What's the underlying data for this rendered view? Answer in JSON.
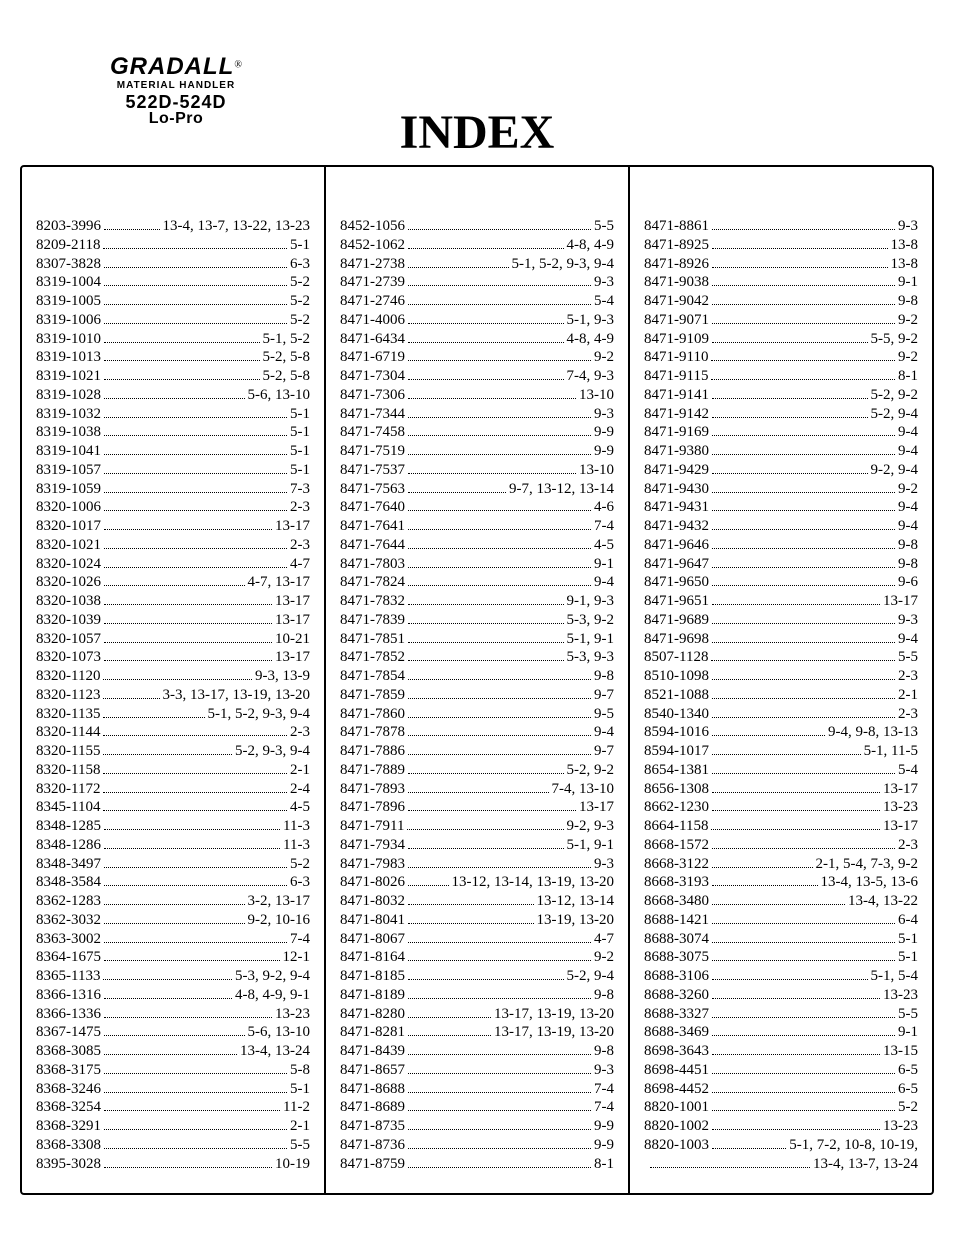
{
  "brand": {
    "name": "GRADALL",
    "registered": "®",
    "subhead": "MATERIAL HANDLER",
    "model": "522D-524D",
    "lopro": "Lo-Pro"
  },
  "title": "INDEX",
  "columns": [
    [
      {
        "part": "8203-3996",
        "pages": "13-4, 13-7, 13-22, 13-23"
      },
      {
        "part": "8209-2118",
        "pages": "5-1"
      },
      {
        "part": "8307-3828",
        "pages": "6-3"
      },
      {
        "part": "8319-1004",
        "pages": "5-2"
      },
      {
        "part": "8319-1005",
        "pages": "5-2"
      },
      {
        "part": "8319-1006",
        "pages": "5-2"
      },
      {
        "part": "8319-1010",
        "pages": "5-1, 5-2"
      },
      {
        "part": "8319-1013",
        "pages": "5-2, 5-8"
      },
      {
        "part": "8319-1021",
        "pages": "5-2, 5-8"
      },
      {
        "part": "8319-1028",
        "pages": "5-6, 13-10"
      },
      {
        "part": "8319-1032",
        "pages": "5-1"
      },
      {
        "part": "8319-1038",
        "pages": "5-1"
      },
      {
        "part": "8319-1041",
        "pages": "5-1"
      },
      {
        "part": "8319-1057",
        "pages": "5-1"
      },
      {
        "part": "8319-1059",
        "pages": "7-3"
      },
      {
        "part": "8320-1006",
        "pages": "2-3"
      },
      {
        "part": "8320-1017",
        "pages": "13-17"
      },
      {
        "part": "8320-1021",
        "pages": "2-3"
      },
      {
        "part": "8320-1024",
        "pages": "4-7"
      },
      {
        "part": "8320-1026",
        "pages": "4-7, 13-17"
      },
      {
        "part": "8320-1038",
        "pages": "13-17"
      },
      {
        "part": "8320-1039",
        "pages": "13-17"
      },
      {
        "part": "8320-1057",
        "pages": "10-21"
      },
      {
        "part": "8320-1073",
        "pages": "13-17"
      },
      {
        "part": "8320-1120",
        "pages": "9-3, 13-9"
      },
      {
        "part": "8320-1123",
        "pages": "3-3, 13-17, 13-19, 13-20"
      },
      {
        "part": "8320-1135",
        "pages": "5-1, 5-2, 9-3, 9-4"
      },
      {
        "part": "8320-1144",
        "pages": "2-3"
      },
      {
        "part": "8320-1155",
        "pages": "5-2, 9-3, 9-4"
      },
      {
        "part": "8320-1158",
        "pages": "2-1"
      },
      {
        "part": "8320-1172",
        "pages": "2-4"
      },
      {
        "part": "8345-1104",
        "pages": "4-5"
      },
      {
        "part": "8348-1285",
        "pages": "11-3"
      },
      {
        "part": "8348-1286",
        "pages": "11-3"
      },
      {
        "part": "8348-3497",
        "pages": "5-2"
      },
      {
        "part": "8348-3584",
        "pages": "6-3"
      },
      {
        "part": "8362-1283",
        "pages": "3-2, 13-17"
      },
      {
        "part": "8362-3032",
        "pages": "9-2, 10-16"
      },
      {
        "part": "8363-3002",
        "pages": "7-4"
      },
      {
        "part": "8364-1675",
        "pages": "12-1"
      },
      {
        "part": "8365-1133",
        "pages": "5-3, 9-2, 9-4"
      },
      {
        "part": "8366-1316",
        "pages": "4-8, 4-9, 9-1"
      },
      {
        "part": "8366-1336",
        "pages": "13-23"
      },
      {
        "part": "8367-1475",
        "pages": "5-6, 13-10"
      },
      {
        "part": "8368-3085",
        "pages": "13-4, 13-24"
      },
      {
        "part": "8368-3175",
        "pages": "5-8"
      },
      {
        "part": "8368-3246",
        "pages": "5-1"
      },
      {
        "part": "8368-3254",
        "pages": "11-2"
      },
      {
        "part": "8368-3291",
        "pages": "2-1"
      },
      {
        "part": "8368-3308",
        "pages": "5-5"
      },
      {
        "part": "8395-3028",
        "pages": "10-19"
      }
    ],
    [
      {
        "part": "8452-1056",
        "pages": "5-5"
      },
      {
        "part": "8452-1062",
        "pages": "4-8, 4-9"
      },
      {
        "part": "8471-2738",
        "pages": "5-1, 5-2, 9-3, 9-4"
      },
      {
        "part": "8471-2739",
        "pages": "9-3"
      },
      {
        "part": "8471-2746",
        "pages": "5-4"
      },
      {
        "part": "8471-4006",
        "pages": "5-1, 9-3"
      },
      {
        "part": "8471-6434",
        "pages": "4-8, 4-9"
      },
      {
        "part": "8471-6719",
        "pages": "9-2"
      },
      {
        "part": "8471-7304",
        "pages": "7-4, 9-3"
      },
      {
        "part": "8471-7306",
        "pages": "13-10"
      },
      {
        "part": "8471-7344",
        "pages": "9-3"
      },
      {
        "part": "8471-7458",
        "pages": "9-9"
      },
      {
        "part": "8471-7519",
        "pages": "9-9"
      },
      {
        "part": "8471-7537",
        "pages": "13-10"
      },
      {
        "part": "8471-7563",
        "pages": "9-7, 13-12, 13-14"
      },
      {
        "part": "8471-7640",
        "pages": "4-6"
      },
      {
        "part": "8471-7641",
        "pages": "7-4"
      },
      {
        "part": "8471-7644",
        "pages": "4-5"
      },
      {
        "part": "8471-7803",
        "pages": "9-1"
      },
      {
        "part": "8471-7824",
        "pages": "9-4"
      },
      {
        "part": "8471-7832",
        "pages": "9-1, 9-3"
      },
      {
        "part": "8471-7839",
        "pages": "5-3, 9-2"
      },
      {
        "part": "8471-7851",
        "pages": "5-1, 9-1"
      },
      {
        "part": "8471-7852",
        "pages": "5-3, 9-3"
      },
      {
        "part": "8471-7854",
        "pages": "9-8"
      },
      {
        "part": "8471-7859",
        "pages": "9-7"
      },
      {
        "part": "8471-7860",
        "pages": "9-5"
      },
      {
        "part": "8471-7878",
        "pages": "9-4"
      },
      {
        "part": "8471-7886",
        "pages": "9-7"
      },
      {
        "part": "8471-7889",
        "pages": "5-2, 9-2"
      },
      {
        "part": "8471-7893",
        "pages": "7-4, 13-10"
      },
      {
        "part": "8471-7896",
        "pages": "13-17"
      },
      {
        "part": "8471-7911",
        "pages": "9-2, 9-3"
      },
      {
        "part": "8471-7934",
        "pages": "5-1, 9-1"
      },
      {
        "part": "8471-7983",
        "pages": "9-3"
      },
      {
        "part": "8471-8026",
        "pages": "13-12, 13-14, 13-19, 13-20"
      },
      {
        "part": "8471-8032",
        "pages": "13-12, 13-14"
      },
      {
        "part": "8471-8041",
        "pages": "13-19, 13-20"
      },
      {
        "part": "8471-8067",
        "pages": "4-7"
      },
      {
        "part": "8471-8164",
        "pages": "9-2"
      },
      {
        "part": "8471-8185",
        "pages": "5-2, 9-4"
      },
      {
        "part": "8471-8189",
        "pages": "9-8"
      },
      {
        "part": "8471-8280",
        "pages": "13-17, 13-19, 13-20"
      },
      {
        "part": "8471-8281",
        "pages": "13-17, 13-19, 13-20"
      },
      {
        "part": "8471-8439",
        "pages": "9-8"
      },
      {
        "part": "8471-8657",
        "pages": "9-3"
      },
      {
        "part": "8471-8688",
        "pages": "7-4"
      },
      {
        "part": "8471-8689",
        "pages": "7-4"
      },
      {
        "part": "8471-8735",
        "pages": "9-9"
      },
      {
        "part": "8471-8736",
        "pages": "9-9"
      },
      {
        "part": "8471-8759",
        "pages": "8-1"
      }
    ],
    [
      {
        "part": "8471-8861",
        "pages": "9-3"
      },
      {
        "part": "8471-8925",
        "pages": "13-8"
      },
      {
        "part": "8471-8926",
        "pages": "13-8"
      },
      {
        "part": "8471-9038",
        "pages": "9-1"
      },
      {
        "part": "8471-9042",
        "pages": "9-8"
      },
      {
        "part": "8471-9071",
        "pages": "9-2"
      },
      {
        "part": "8471-9109",
        "pages": "5-5, 9-2"
      },
      {
        "part": "8471-9110",
        "pages": "9-2"
      },
      {
        "part": "8471-9115",
        "pages": "8-1"
      },
      {
        "part": "8471-9141",
        "pages": "5-2, 9-2"
      },
      {
        "part": "8471-9142",
        "pages": "5-2, 9-4"
      },
      {
        "part": "8471-9169",
        "pages": "9-4"
      },
      {
        "part": "8471-9380",
        "pages": "9-4"
      },
      {
        "part": "8471-9429",
        "pages": "9-2, 9-4"
      },
      {
        "part": "8471-9430",
        "pages": "9-2"
      },
      {
        "part": "8471-9431",
        "pages": "9-4"
      },
      {
        "part": "8471-9432",
        "pages": "9-4"
      },
      {
        "part": "8471-9646",
        "pages": "9-8"
      },
      {
        "part": "8471-9647",
        "pages": "9-8"
      },
      {
        "part": "8471-9650",
        "pages": "9-6"
      },
      {
        "part": "8471-9651",
        "pages": "13-17"
      },
      {
        "part": "8471-9689",
        "pages": "9-3"
      },
      {
        "part": "8471-9698",
        "pages": "9-4"
      },
      {
        "part": "8507-1128",
        "pages": "5-5"
      },
      {
        "part": "8510-1098",
        "pages": "2-3"
      },
      {
        "part": "8521-1088",
        "pages": "2-1"
      },
      {
        "part": "8540-1340",
        "pages": "2-3"
      },
      {
        "part": "8594-1016",
        "pages": "9-4, 9-8, 13-13"
      },
      {
        "part": "8594-1017",
        "pages": "5-1, 11-5"
      },
      {
        "part": "8654-1381",
        "pages": "5-4"
      },
      {
        "part": "8656-1308",
        "pages": "13-17"
      },
      {
        "part": "8662-1230",
        "pages": "13-23"
      },
      {
        "part": "8664-1158",
        "pages": "13-17"
      },
      {
        "part": "8668-1572",
        "pages": "2-3"
      },
      {
        "part": "8668-3122",
        "pages": "2-1, 5-4, 7-3, 9-2"
      },
      {
        "part": "8668-3193",
        "pages": "13-4, 13-5, 13-6"
      },
      {
        "part": "8668-3480",
        "pages": "13-4, 13-22"
      },
      {
        "part": "8688-1421",
        "pages": "6-4"
      },
      {
        "part": "8688-3074",
        "pages": "5-1"
      },
      {
        "part": "8688-3075",
        "pages": "5-1"
      },
      {
        "part": "8688-3106",
        "pages": "5-1, 5-4"
      },
      {
        "part": "8688-3260",
        "pages": "13-23"
      },
      {
        "part": "8688-3327",
        "pages": "5-5"
      },
      {
        "part": "8688-3469",
        "pages": "9-1"
      },
      {
        "part": "8698-3643",
        "pages": "13-15"
      },
      {
        "part": "8698-4451",
        "pages": "6-5"
      },
      {
        "part": "8698-4452",
        "pages": "6-5"
      },
      {
        "part": "8820-1001",
        "pages": "5-2"
      },
      {
        "part": "8820-1002",
        "pages": "13-23"
      },
      {
        "part": "8820-1003",
        "pages": "5-1, 7-2, 10-8, 10-19,"
      },
      {
        "part": "",
        "pages": "13-4, 13-7, 13-24",
        "cont": true
      }
    ]
  ]
}
